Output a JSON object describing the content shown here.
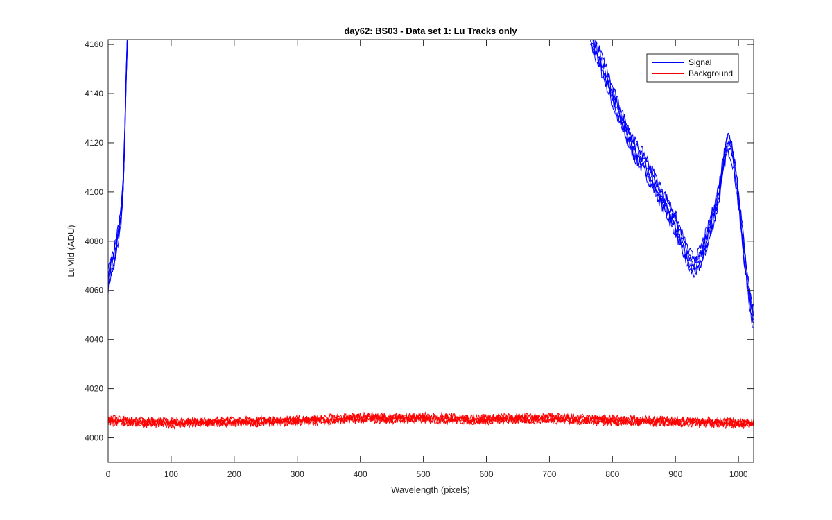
{
  "chart_data": {
    "type": "line",
    "title": "day62: BS03 - Data set 1: Lu Tracks only",
    "xlabel": "Wavelength (pixels)",
    "ylabel": "LuMid (ADU)",
    "xlim": [
      0,
      1024
    ],
    "ylim": [
      3990,
      4162
    ],
    "xticks": [
      0,
      100,
      200,
      300,
      400,
      500,
      600,
      700,
      800,
      900,
      1000
    ],
    "yticks": [
      4000,
      4020,
      4040,
      4060,
      4080,
      4100,
      4120,
      4140,
      4160
    ],
    "grid": false,
    "legend_position": "top-right",
    "series": [
      {
        "name": "Signal",
        "color": "#0000ff",
        "segments": [
          {
            "x": [
              0,
              3,
              6,
              10,
              14,
              18,
              20,
              22,
              24,
              26,
              27,
              28,
              29,
              30,
              31,
              32
            ],
            "y": [
              4064,
              4068,
              4071,
              4074,
              4080,
              4086,
              4090,
              4095,
              4103,
              4120,
              4130,
              4140,
              4150,
              4158,
              4162,
              4170
            ]
          },
          {
            "x": [
              765,
              770,
              780,
              790,
              800,
              810,
              820,
              830,
              840,
              850,
              860,
              870,
              880,
              890,
              900,
              910,
              915,
              920,
              925,
              930,
              935,
              940,
              950,
              960,
              965,
              970,
              975,
              980,
              985,
              990,
              995,
              1000,
              1005,
              1010,
              1015,
              1020,
              1024
            ],
            "y": [
              4163,
              4160,
              4154,
              4147,
              4139,
              4132,
              4126,
              4120,
              4115,
              4112,
              4107,
              4102,
              4097,
              4092,
              4087,
              4080,
              4076,
              4073,
              4071,
              4070,
              4071,
              4074,
              4081,
              4090,
              4095,
              4101,
              4110,
              4118,
              4120,
              4116,
              4108,
              4097,
              4085,
              4073,
              4062,
              4053,
              4048
            ]
          }
        ]
      },
      {
        "name": "Background",
        "color": "#ff0000",
        "segments": [
          {
            "x": [
              0,
              100,
              200,
              300,
              400,
              500,
              600,
              700,
              800,
              900,
              1000,
              1024
            ],
            "y": [
              4007,
              4006,
              4006.5,
              4007,
              4008,
              4008,
              4007.5,
              4008,
              4007,
              4006.5,
              4006,
              4006
            ]
          }
        ]
      }
    ]
  }
}
